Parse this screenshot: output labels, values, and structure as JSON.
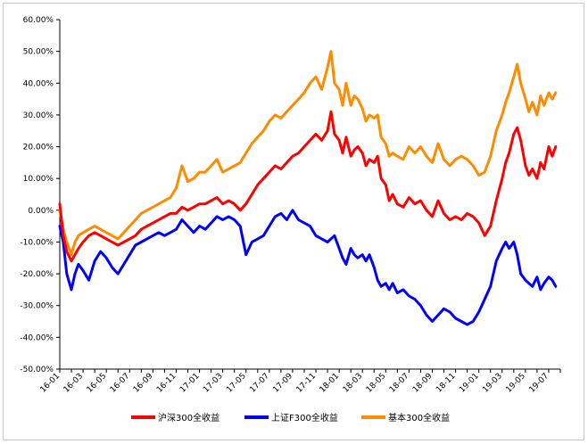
{
  "chart_data": {
    "type": "line",
    "title": "",
    "xlabel": "",
    "ylabel": "",
    "ylim": [
      -50,
      60
    ],
    "yticks": [
      -50,
      -40,
      -30,
      -20,
      -10,
      0,
      10,
      20,
      30,
      40,
      50,
      60
    ],
    "ytick_labels": [
      "-50.00%",
      "-40.00%",
      "-30.00%",
      "-20.00%",
      "-10.00%",
      "0.00%",
      "10.00%",
      "20.00%",
      "30.00%",
      "40.00%",
      "50.00%",
      "60.00%"
    ],
    "xlim": [
      0,
      43
    ],
    "xticks": [
      0,
      2,
      4,
      6,
      8,
      10,
      12,
      14,
      16,
      18,
      20,
      22,
      24,
      26,
      28,
      30,
      32,
      34,
      36,
      38,
      40,
      42
    ],
    "xtick_labels": [
      "16-01",
      "16-03",
      "16-05",
      "16-07",
      "16-09",
      "16-11",
      "17-01",
      "17-03",
      "17-05",
      "17-07",
      "17-09",
      "17-11",
      "18-01",
      "18-03",
      "18-05",
      "18-07",
      "18-09",
      "18-11",
      "19-01",
      "19-03",
      "19-05",
      "19-07"
    ],
    "legend_position": "bottom",
    "series": [
      {
        "name": "沪深300全收益",
        "color": "#ff0000",
        "x": [
          0,
          0.3,
          0.6,
          1,
          1.3,
          1.6,
          2,
          2.5,
          3,
          3.5,
          4,
          4.5,
          5,
          5.5,
          6,
          6.5,
          7,
          7.5,
          8,
          8.5,
          9,
          9.5,
          10,
          10.5,
          11,
          11.5,
          12,
          12.5,
          13,
          13.5,
          14,
          14.5,
          15,
          15.5,
          16,
          16.5,
          17,
          17.5,
          18,
          18.5,
          19,
          19.5,
          20,
          20.5,
          21,
          21.5,
          22,
          22.5,
          23,
          23.3,
          23.6,
          24,
          24.3,
          24.6,
          25,
          25.3,
          25.6,
          26,
          26.3,
          26.6,
          27,
          27.3,
          27.6,
          28,
          28.3,
          28.6,
          29,
          29.5,
          30,
          30.5,
          31,
          31.5,
          32,
          32.5,
          33,
          33.5,
          34,
          34.5,
          35,
          35.5,
          36,
          36.5,
          37,
          37.5,
          38,
          38.3,
          38.6,
          39,
          39.3,
          39.6,
          40,
          40.3,
          40.6,
          41,
          41.3,
          41.6,
          42,
          42.3,
          42.6
        ],
        "values": [
          2,
          -8,
          -13,
          -16,
          -14,
          -12,
          -10,
          -8,
          -7,
          -8,
          -9,
          -10,
          -11,
          -10,
          -9,
          -8,
          -6,
          -5,
          -4,
          -3,
          -2,
          -1,
          -1,
          1,
          0,
          1,
          2,
          2,
          3,
          4,
          2,
          3,
          2,
          0,
          2,
          5,
          8,
          10,
          12,
          14,
          13,
          15,
          17,
          18,
          20,
          22,
          24,
          22,
          25,
          31,
          24,
          22,
          18,
          23,
          17,
          19,
          20,
          18,
          14,
          16,
          15,
          17,
          10,
          8,
          3,
          5,
          2,
          1,
          4,
          2,
          3,
          0,
          -2,
          3,
          -1,
          -3,
          -2,
          -3,
          -1,
          -2,
          -4,
          -8,
          -5,
          3,
          10,
          15,
          18,
          24,
          26,
          22,
          14,
          11,
          13,
          10,
          15,
          13,
          20,
          17,
          20
        ]
      },
      {
        "name": "上证F300全收益",
        "color": "#0000ff",
        "x": [
          0,
          0.3,
          0.6,
          1,
          1.3,
          1.6,
          2,
          2.5,
          3,
          3.5,
          4,
          4.5,
          5,
          5.5,
          6,
          6.5,
          7,
          7.5,
          8,
          8.5,
          9,
          9.5,
          10,
          10.5,
          11,
          11.5,
          12,
          12.5,
          13,
          13.5,
          14,
          14.5,
          15,
          15.5,
          16,
          16.5,
          17,
          17.5,
          18,
          18.5,
          19,
          19.5,
          20,
          20.5,
          21,
          21.5,
          22,
          22.5,
          23,
          23.3,
          23.6,
          24,
          24.3,
          24.6,
          25,
          25.3,
          25.6,
          26,
          26.3,
          26.6,
          27,
          27.3,
          27.6,
          28,
          28.3,
          28.6,
          29,
          29.5,
          30,
          30.5,
          31,
          31.5,
          32,
          32.5,
          33,
          33.5,
          34,
          34.5,
          35,
          35.5,
          36,
          36.5,
          37,
          37.5,
          38,
          38.3,
          38.6,
          39,
          39.3,
          39.6,
          40,
          40.3,
          40.6,
          41,
          41.3,
          41.6,
          42,
          42.3,
          42.6
        ],
        "values": [
          -5,
          -10,
          -20,
          -25,
          -20,
          -17,
          -19,
          -22,
          -16,
          -13,
          -15,
          -18,
          -20,
          -17,
          -14,
          -11,
          -10,
          -9,
          -8,
          -7,
          -8,
          -7,
          -6,
          -3,
          -5,
          -7,
          -5,
          -6,
          -4,
          -2,
          -3,
          -2,
          -3,
          -5,
          -14,
          -10,
          -9,
          -8,
          -5,
          -2,
          -1,
          -3,
          0,
          -3,
          -4,
          -5,
          -8,
          -9,
          -10,
          -9,
          -8,
          -12,
          -15,
          -17,
          -12,
          -14,
          -15,
          -14,
          -16,
          -14,
          -18,
          -22,
          -24,
          -23,
          -25,
          -23,
          -26,
          -25,
          -27,
          -28,
          -30,
          -33,
          -35,
          -33,
          -31,
          -32,
          -34,
          -35,
          -36,
          -35,
          -32,
          -28,
          -24,
          -16,
          -12,
          -10,
          -12,
          -10,
          -14,
          -20,
          -22,
          -23,
          -24,
          -21,
          -25,
          -23,
          -21,
          -22,
          -24
        ]
      },
      {
        "name": "基本300全收益",
        "color": "#ff8c00",
        "x": [
          0,
          0.3,
          0.6,
          1,
          1.3,
          1.6,
          2,
          2.5,
          3,
          3.5,
          4,
          4.5,
          5,
          5.5,
          6,
          6.5,
          7,
          7.5,
          8,
          8.5,
          9,
          9.5,
          10,
          10.5,
          11,
          11.5,
          12,
          12.5,
          13,
          13.5,
          14,
          14.5,
          15,
          15.5,
          16,
          16.5,
          17,
          17.5,
          18,
          18.5,
          19,
          19.5,
          20,
          20.5,
          21,
          21.5,
          22,
          22.5,
          23,
          23.3,
          23.6,
          24,
          24.3,
          24.6,
          25,
          25.3,
          25.6,
          26,
          26.3,
          26.6,
          27,
          27.3,
          27.6,
          28,
          28.3,
          28.6,
          29,
          29.5,
          30,
          30.5,
          31,
          31.5,
          32,
          32.5,
          33,
          33.5,
          34,
          34.5,
          35,
          35.5,
          36,
          36.5,
          37,
          37.5,
          38,
          38.3,
          38.6,
          39,
          39.3,
          39.6,
          40,
          40.3,
          40.6,
          41,
          41.3,
          41.6,
          42,
          42.3,
          42.6
        ],
        "values": [
          0,
          -6,
          -10,
          -14,
          -10,
          -8,
          -7,
          -6,
          -5,
          -6,
          -7,
          -8,
          -9,
          -7,
          -5,
          -3,
          -1,
          0,
          1,
          2,
          3,
          4,
          7,
          14,
          9,
          10,
          12,
          12,
          14,
          16,
          12,
          13,
          14,
          15,
          18,
          21,
          23,
          25,
          28,
          30,
          29,
          31,
          33,
          35,
          37,
          40,
          42,
          38,
          45,
          50,
          40,
          38,
          33,
          40,
          33,
          36,
          35,
          32,
          28,
          30,
          29,
          30,
          23,
          21,
          17,
          18,
          17,
          16,
          20,
          18,
          20,
          17,
          15,
          21,
          16,
          14,
          16,
          17,
          16,
          14,
          11,
          12,
          17,
          25,
          30,
          34,
          37,
          42,
          46,
          40,
          35,
          31,
          34,
          30,
          36,
          33,
          37,
          35,
          37
        ]
      }
    ]
  }
}
